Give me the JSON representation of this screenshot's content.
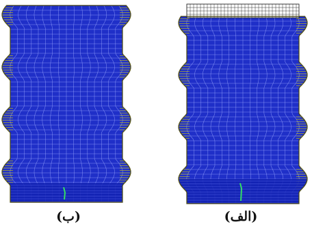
{
  "figures": [
    {
      "id": "b",
      "caption": "(ب)",
      "colors": {
        "mesh": "#1f2fc8",
        "line": "#d7d000",
        "outline": "#111111",
        "crack": "#33dd66"
      }
    },
    {
      "id": "a",
      "caption": "(الف)",
      "colors": {
        "mesh": "#1f2fc8",
        "line": "#d7d000",
        "outline": "#111111",
        "crack": "#33dd66"
      }
    }
  ]
}
